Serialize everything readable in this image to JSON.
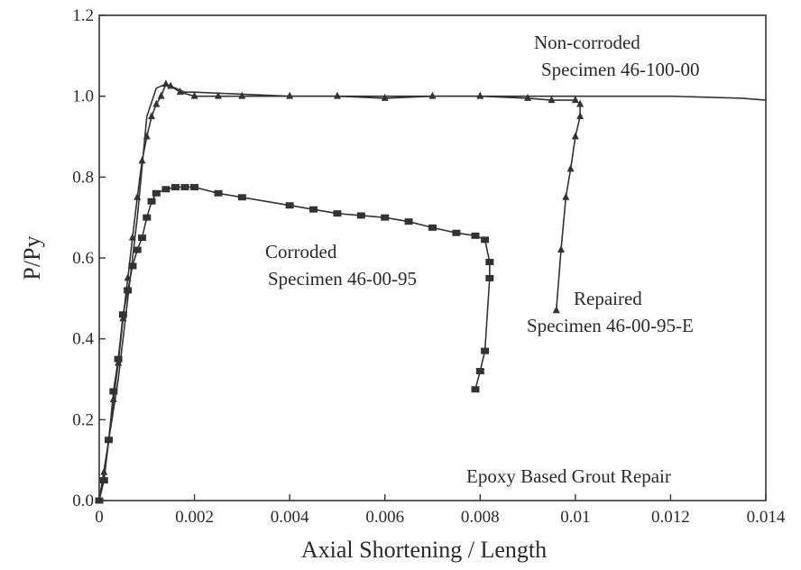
{
  "chart_data": {
    "type": "line",
    "title": "",
    "xlabel": "Axial Shortening / Length",
    "ylabel": "P/Py",
    "xlim": [
      0,
      0.014
    ],
    "ylim": [
      0,
      1.2
    ],
    "x_ticks": [
      "0",
      "0.002",
      "0.004",
      "0.006",
      "0.008",
      "0.01",
      "0.012",
      "0.014"
    ],
    "y_ticks": [
      "0.0",
      "0.2",
      "0.4",
      "0.6",
      "0.8",
      "1.0",
      "1.2"
    ],
    "grid": false,
    "annotations": {
      "non_corroded_line1": "Non-corroded",
      "non_corroded_line2": "Specimen 46-100-00",
      "corroded_line1": "Corroded",
      "corroded_line2": "Specimen 46-00-95",
      "repaired_line1": "Repaired",
      "repaired_line2": "Specimen 46-00-95-E",
      "repair_note": "Epoxy Based Grout Repair"
    },
    "series": [
      {
        "marker": "none",
        "color": "#333333",
        "points": [
          [
            0,
            0
          ],
          [
            0.0002,
            0.15
          ],
          [
            0.0004,
            0.3
          ],
          [
            0.0006,
            0.5
          ],
          [
            0.0008,
            0.7
          ],
          [
            0.001,
            0.95
          ],
          [
            0.0012,
            1.02
          ],
          [
            0.0014,
            1.03
          ],
          [
            0.0016,
            1.02
          ],
          [
            0.0018,
            1.01
          ],
          [
            0.002,
            1.01
          ],
          [
            0.004,
            1.0
          ],
          [
            0.006,
            1.0
          ],
          [
            0.008,
            1.0
          ],
          [
            0.01,
            1.0
          ],
          [
            0.012,
            1.0
          ],
          [
            0.0135,
            0.995
          ],
          [
            0.014,
            0.99
          ]
        ]
      },
      {
        "marker": "square",
        "color": "#333333",
        "points": [
          [
            0,
            0
          ],
          [
            0.0001,
            0.05
          ],
          [
            0.0002,
            0.15
          ],
          [
            0.0003,
            0.27
          ],
          [
            0.0004,
            0.35
          ],
          [
            0.0005,
            0.46
          ],
          [
            0.0006,
            0.52
          ],
          [
            0.0007,
            0.58
          ],
          [
            0.0008,
            0.62
          ],
          [
            0.0009,
            0.65
          ],
          [
            0.001,
            0.7
          ],
          [
            0.0011,
            0.74
          ],
          [
            0.0012,
            0.76
          ],
          [
            0.0014,
            0.77
          ],
          [
            0.0016,
            0.775
          ],
          [
            0.0018,
            0.775
          ],
          [
            0.002,
            0.775
          ],
          [
            0.0025,
            0.76
          ],
          [
            0.003,
            0.75
          ],
          [
            0.004,
            0.73
          ],
          [
            0.0045,
            0.72
          ],
          [
            0.005,
            0.71
          ],
          [
            0.0055,
            0.705
          ],
          [
            0.006,
            0.7
          ],
          [
            0.0065,
            0.69
          ],
          [
            0.007,
            0.675
          ],
          [
            0.0075,
            0.662
          ],
          [
            0.0079,
            0.655
          ],
          [
            0.0081,
            0.645
          ],
          [
            0.0082,
            0.59
          ],
          [
            0.0082,
            0.55
          ],
          [
            0.0081,
            0.37
          ],
          [
            0.008,
            0.32
          ],
          [
            0.0079,
            0.275
          ]
        ]
      },
      {
        "marker": "triangle",
        "color": "#333333",
        "points": [
          [
            0,
            0
          ],
          [
            0.0001,
            0.07
          ],
          [
            0.0002,
            0.15
          ],
          [
            0.0003,
            0.25
          ],
          [
            0.0004,
            0.34
          ],
          [
            0.0005,
            0.45
          ],
          [
            0.0006,
            0.55
          ],
          [
            0.0007,
            0.65
          ],
          [
            0.0008,
            0.75
          ],
          [
            0.0009,
            0.84
          ],
          [
            0.001,
            0.9
          ],
          [
            0.0011,
            0.95
          ],
          [
            0.0012,
            0.98
          ],
          [
            0.0013,
            1.0
          ],
          [
            0.0014,
            1.03
          ],
          [
            0.0015,
            1.025
          ],
          [
            0.0017,
            1.01
          ],
          [
            0.002,
            1.0
          ],
          [
            0.0025,
            1.0
          ],
          [
            0.003,
            1.0
          ],
          [
            0.004,
            1.0
          ],
          [
            0.005,
            1.0
          ],
          [
            0.006,
            0.995
          ],
          [
            0.007,
            1.0
          ],
          [
            0.008,
            1.0
          ],
          [
            0.009,
            0.995
          ],
          [
            0.0095,
            0.99
          ],
          [
            0.01,
            0.99
          ],
          [
            0.0101,
            0.98
          ],
          [
            0.0101,
            0.95
          ],
          [
            0.01,
            0.9
          ],
          [
            0.0099,
            0.82
          ],
          [
            0.0098,
            0.75
          ],
          [
            0.0097,
            0.62
          ],
          [
            0.0096,
            0.47
          ]
        ]
      }
    ]
  }
}
